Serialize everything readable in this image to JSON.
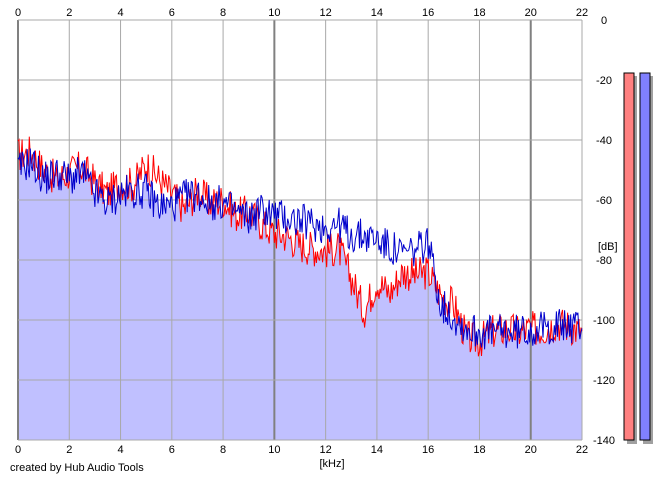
{
  "chart_data": {
    "type": "area",
    "xlabel": "[kHz]",
    "ylabel": "[dB]",
    "xlim": [
      0,
      22
    ],
    "ylim": [
      -140,
      0
    ],
    "x_ticks": [
      0,
      2,
      4,
      6,
      8,
      10,
      12,
      14,
      16,
      18,
      20,
      22
    ],
    "y_ticks": [
      0,
      -20,
      -40,
      -60,
      -80,
      -100,
      -120,
      -140
    ],
    "grid": true,
    "fill_color": "#c0c0ff",
    "series": [
      {
        "color": "#ff0000",
        "x": [
          0,
          0.5,
          1,
          1.5,
          2,
          2.5,
          3,
          3.5,
          4,
          4.5,
          5,
          5.5,
          6,
          6.5,
          7,
          7.5,
          8,
          8.5,
          9,
          9.5,
          10,
          10.5,
          11,
          11.5,
          12,
          12.5,
          13,
          13.5,
          14,
          14.5,
          15,
          15.5,
          16,
          16.5,
          17,
          17.5,
          18,
          18.5,
          19,
          19.5,
          20,
          20.5,
          21,
          21.5,
          22
        ],
        "values": [
          -45,
          -44,
          -50,
          -53,
          -51,
          -49,
          -54,
          -58,
          -54,
          -55,
          -48,
          -53,
          -58,
          -63,
          -57,
          -61,
          -60,
          -65,
          -64,
          -68,
          -71,
          -72,
          -75,
          -76,
          -77,
          -76,
          -86,
          -97,
          -87,
          -91,
          -84,
          -85,
          -84,
          -92,
          -95,
          -106,
          -107,
          -104,
          -103,
          -104,
          -103,
          -103,
          -101,
          -102,
          -104
        ]
      },
      {
        "color": "#0000cc",
        "x": [
          0,
          0.5,
          1,
          1.5,
          2,
          2.5,
          3,
          3.5,
          4,
          4.5,
          5,
          5.5,
          6,
          6.5,
          7,
          7.5,
          8,
          8.5,
          9,
          9.5,
          10,
          10.5,
          11,
          11.5,
          12,
          12.5,
          13,
          13.5,
          14,
          14.5,
          15,
          15.5,
          16,
          16.5,
          17,
          17.5,
          18,
          18.5,
          19,
          19.5,
          20,
          20.5,
          21,
          21.5,
          22
        ],
        "values": [
          -50,
          -47,
          -53,
          -51,
          -53,
          -51,
          -58,
          -61,
          -58,
          -57,
          -57,
          -62,
          -62,
          -59,
          -58,
          -61,
          -61,
          -64,
          -66,
          -63,
          -65,
          -66,
          -67,
          -68,
          -69,
          -68,
          -72,
          -72,
          -73,
          -76,
          -78,
          -77,
          -74,
          -95,
          -99,
          -103,
          -104,
          -104,
          -104,
          -104,
          -103,
          -103,
          -102,
          -102,
          -102
        ]
      }
    ],
    "meters": [
      {
        "color": "#ff8080",
        "value": -140
      },
      {
        "color": "#8080ff",
        "value": -140
      }
    ]
  },
  "footer": {
    "credit": "created by Hub Audio Tools"
  }
}
